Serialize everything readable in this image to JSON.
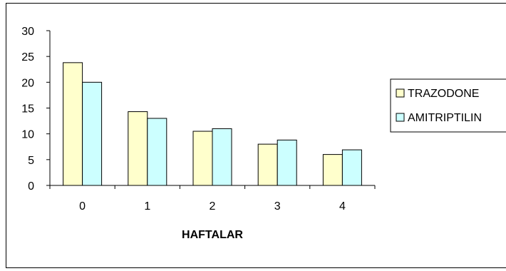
{
  "chart_data": {
    "type": "bar",
    "title": "",
    "xlabel": "HAFTALAR",
    "ylabel": "",
    "categories": [
      "0",
      "1",
      "2",
      "3",
      "4"
    ],
    "ylim": [
      0,
      30
    ],
    "yticks": [
      "0",
      "5",
      "10",
      "15",
      "20",
      "25",
      "30"
    ],
    "grid": false,
    "legend_position": "right",
    "series": [
      {
        "name": "TRAZODONE",
        "color": "#ffffcc",
        "values": [
          23.8,
          14.3,
          10.5,
          8.0,
          6.0
        ]
      },
      {
        "name": "AMITRIPTILIN",
        "color": "#ccffff",
        "values": [
          20.0,
          13.0,
          11.0,
          8.8,
          6.9
        ]
      }
    ]
  }
}
